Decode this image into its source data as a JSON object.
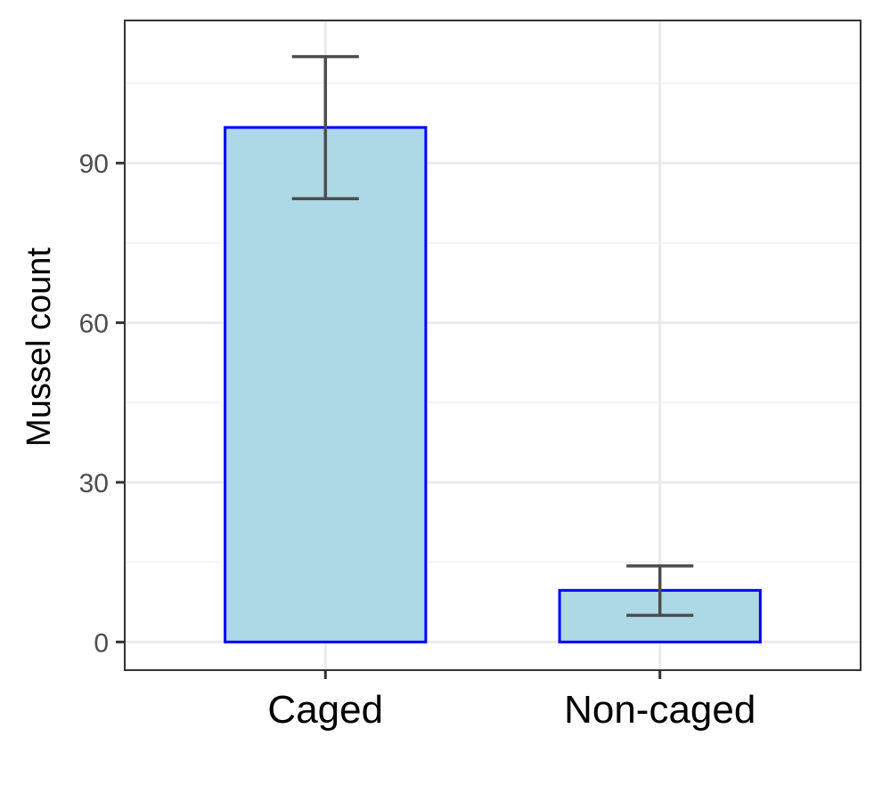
{
  "chart_data": {
    "type": "bar",
    "categories": [
      "Caged",
      "Non-caged"
    ],
    "values": [
      96.7,
      9.7
    ],
    "error_bars": [
      {
        "lower": 83.3,
        "upper": 110.0
      },
      {
        "lower": 5.0,
        "upper": 14.3
      }
    ],
    "xlabel": "",
    "ylabel": "Mussel count",
    "ylim": [
      -5.3,
      116.8
    ],
    "y_ticks": [
      0,
      30,
      60,
      90
    ],
    "y_tick_labels": [
      "0",
      "30",
      "60",
      "90"
    ],
    "grid": true,
    "legend": "none"
  },
  "colors": {
    "bar_fill": "#add8e6",
    "bar_stroke": "#0000ff",
    "error_bar": "#4d4d4d",
    "grid_major": "#ebebeb",
    "grid_minor": "#f3f3f3",
    "panel_border": "#333333",
    "background": "#ffffff"
  }
}
